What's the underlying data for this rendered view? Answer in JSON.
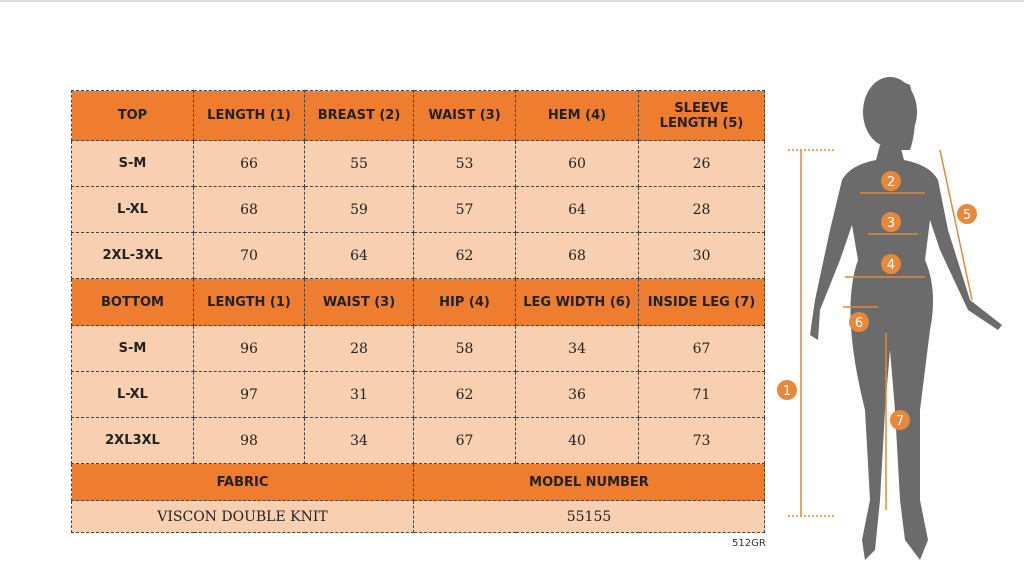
{
  "top": {
    "header": [
      "TOP",
      "LENGTH (1)",
      "BREAST (2)",
      "WAIST (3)",
      "HEM (4)",
      "SLEEVE LENGTH (5)"
    ],
    "rows": [
      [
        "S-M",
        "66",
        "55",
        "53",
        "60",
        "26"
      ],
      [
        "L-XL",
        "68",
        "59",
        "57",
        "64",
        "28"
      ],
      [
        "2XL-3XL",
        "70",
        "64",
        "62",
        "68",
        "30"
      ]
    ]
  },
  "bottom": {
    "header": [
      "BOTTOM",
      "LENGTH (1)",
      "WAIST (3)",
      "HIP (4)",
      "LEG WIDTH (6)",
      "INSIDE LEG (7)"
    ],
    "rows": [
      [
        "S-M",
        "96",
        "28",
        "58",
        "34",
        "67"
      ],
      [
        "L-XL",
        "97",
        "31",
        "62",
        "36",
        "71"
      ],
      [
        "2XL3XL",
        "98",
        "34",
        "67",
        "40",
        "73"
      ]
    ]
  },
  "footer": {
    "header": [
      "FABRIC",
      "MODEL NUMBER"
    ],
    "values": [
      "VISCON DOUBLE KNIT",
      "55155"
    ]
  },
  "code": "512GR",
  "figure": {
    "markers": [
      "1",
      "2",
      "3",
      "4",
      "5",
      "6",
      "7"
    ]
  }
}
